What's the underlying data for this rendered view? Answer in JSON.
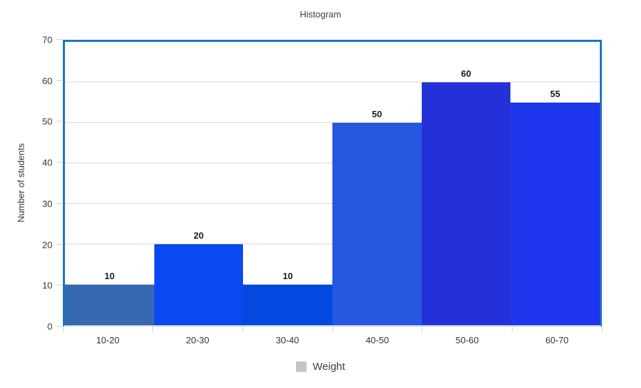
{
  "chart": {
    "title": "Histogram",
    "y_axis_title": "Number of students",
    "legend": {
      "label": "Weight",
      "swatch_color": "#c5c5c5"
    },
    "frame_color": "#1b74c5",
    "gridline_color": "#d9d9d9"
  },
  "chart_data": {
    "type": "bar",
    "title": "Histogram",
    "categories": [
      "10-20",
      "20-30",
      "30-40",
      "40-50",
      "50-60",
      "60-70"
    ],
    "values": [
      10,
      20,
      10,
      50,
      60,
      55
    ],
    "bar_colors": [
      "#3568b0",
      "#0b48f1",
      "#0349e0",
      "#2757e1",
      "#2531d8",
      "#1d36ee"
    ],
    "xlabel": "",
    "ylabel": "Number of students",
    "ylim": [
      0,
      70
    ],
    "yticks": [
      0,
      10,
      20,
      30,
      40,
      50,
      60,
      70
    ],
    "grid": true,
    "data_labels": true,
    "legend_position": "bottom",
    "legend_entries": [
      "Weight"
    ]
  }
}
